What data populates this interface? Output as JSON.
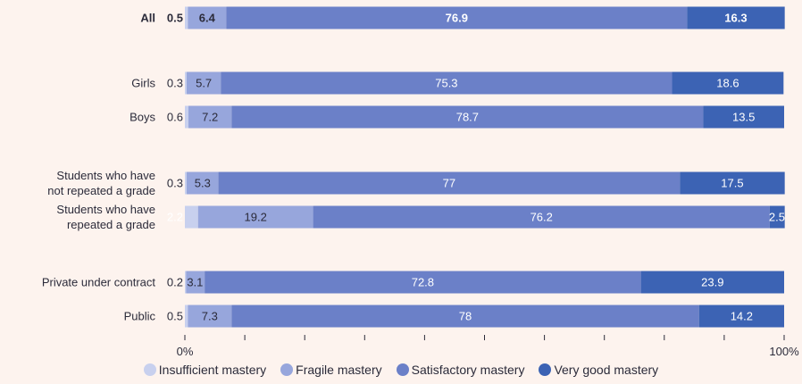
{
  "chart_data": {
    "type": "bar",
    "orientation": "horizontal",
    "stacked": true,
    "title": "",
    "xlabel": "",
    "ylabel": "",
    "xlim": [
      0,
      100
    ],
    "x_tick_labels": [
      "0%",
      "100%"
    ],
    "legend_position": "bottom",
    "categories": [
      "All",
      "Girls",
      "Boys",
      "Students who have not repeated a grade",
      "Students who have repeated a grade",
      "Private under contract",
      "Public"
    ],
    "category_lines": [
      [
        "All"
      ],
      [
        "Girls"
      ],
      [
        "Boys"
      ],
      [
        "Students who have",
        "not repeated a grade"
      ],
      [
        "Students who have",
        "repeated a grade"
      ],
      [
        "Private under contract"
      ],
      [
        "Public"
      ]
    ],
    "series": [
      {
        "name": "Insufficient mastery",
        "color": "#c8d0ee",
        "values": [
          0.5,
          0.3,
          0.6,
          0.3,
          2.2,
          0.2,
          0.5
        ]
      },
      {
        "name": "Fragile mastery",
        "color": "#97a6dc",
        "values": [
          6.4,
          5.7,
          7.2,
          5.3,
          19.2,
          3.1,
          7.3
        ]
      },
      {
        "name": "Satisfactory mastery",
        "color": "#6b80c8",
        "values": [
          76.9,
          75.3,
          78.7,
          77,
          76.2,
          72.8,
          78
        ]
      },
      {
        "name": "Very good mastery",
        "color": "#3c63b4",
        "values": [
          16.3,
          18.6,
          13.5,
          17.5,
          2.5,
          23.9,
          14.2
        ]
      }
    ]
  }
}
